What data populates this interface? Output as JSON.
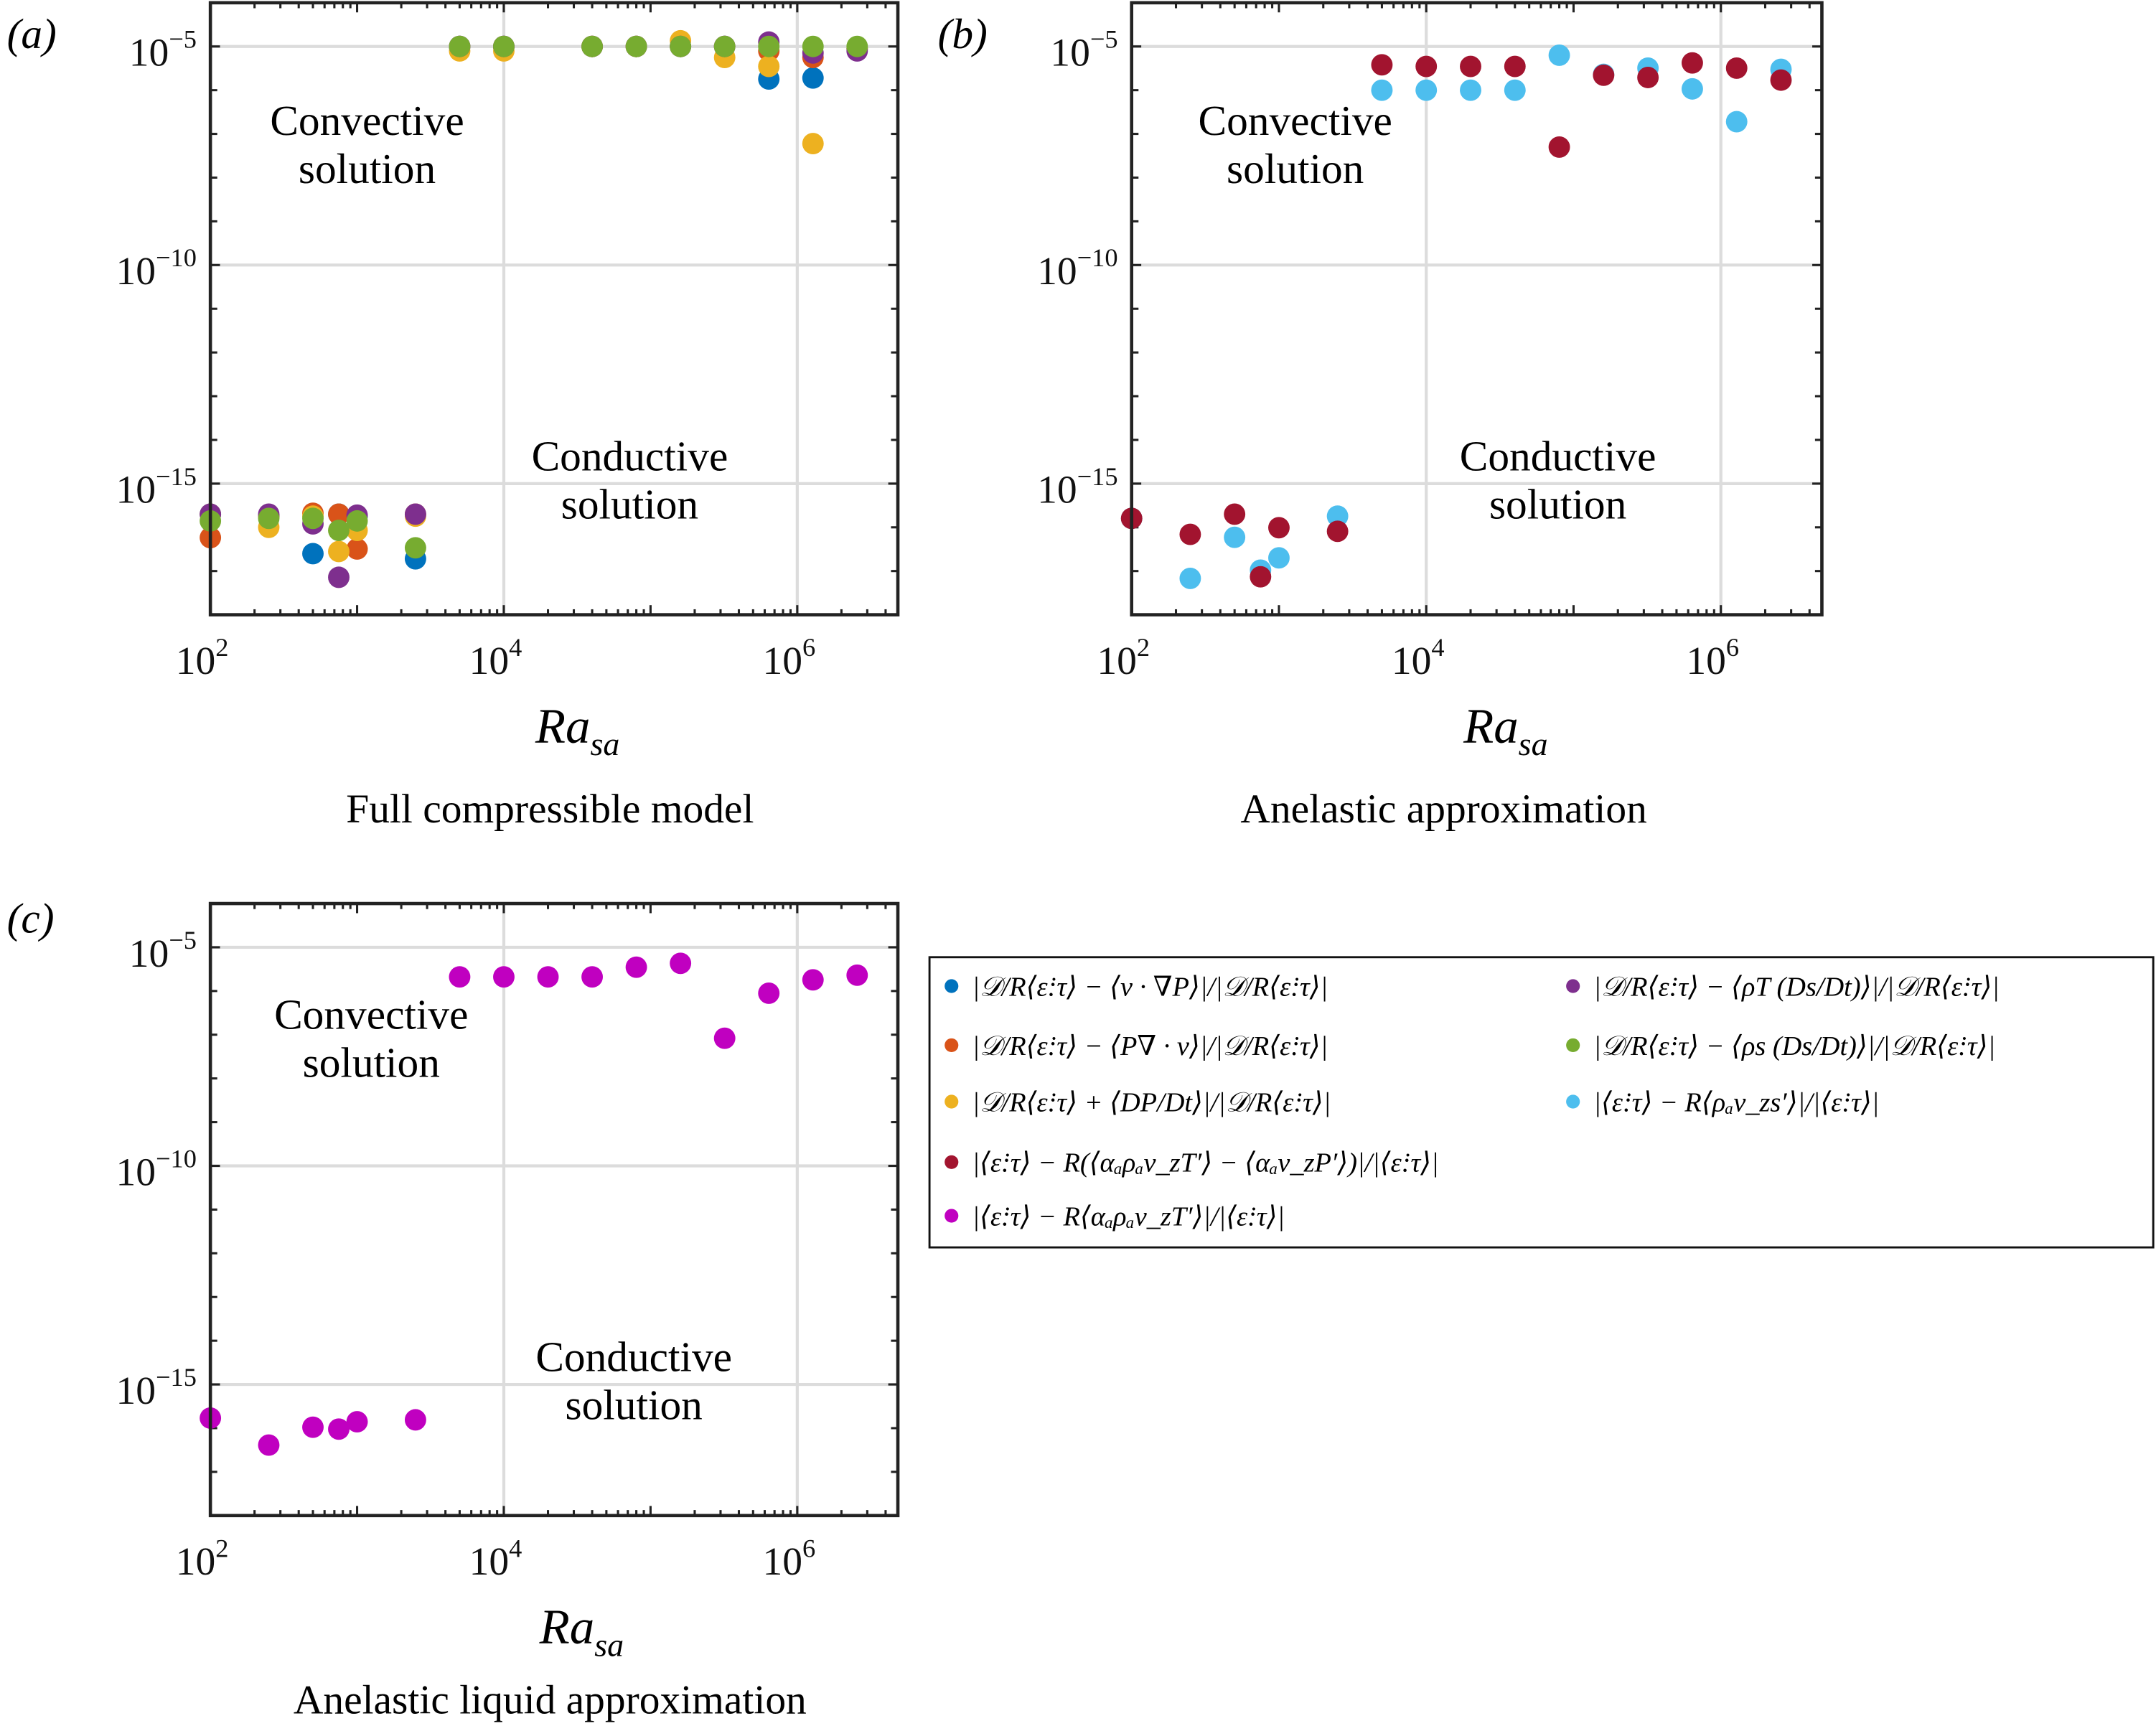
{
  "legend": {
    "entries": [
      {
        "label": "|𝒟/R⟨ε̇:τ⟩ − ⟨v · ∇P⟩|/|𝒟/R⟨ε̇:τ⟩|",
        "color": "#0072BD"
      },
      {
        "label": "|𝒟/R⟨ε̇:τ⟩ − ⟨P∇ · v⟩|/|𝒟/R⟨ε̇:τ⟩|",
        "color": "#D95319"
      },
      {
        "label": "|𝒟/R⟨ε̇:τ⟩ + ⟨DP/Dt⟩|/|𝒟/R⟨ε̇:τ⟩|",
        "color": "#EDB120"
      },
      {
        "label": "|⟨ε̇:τ⟩ − R(⟨αₐρₐv_zT′⟩ − ⟨αₐv_zP′⟩)|/|⟨ε̇:τ⟩|",
        "color": "#A2142F"
      },
      {
        "label": "|⟨ε̇:τ⟩ − R⟨αₐρₐv_zT′⟩|/|⟨ε̇:τ⟩|",
        "color": "#C000C0"
      },
      {
        "label": "|𝒟/R⟨ε̇:τ⟩ − ⟨ρT (Ds/Dt)⟩|/|𝒟/R⟨ε̇:τ⟩|",
        "color": "#7E2F8E"
      },
      {
        "label": "|𝒟/R⟨ε̇:τ⟩ − ⟨ρs (Ds/Dt)⟩|/|𝒟/R⟨ε̇:τ⟩|",
        "color": "#77AC30"
      },
      {
        "label": "|⟨ε̇:τ⟩ − R⟨ρₐv_zs′⟩|/|⟨ε̇:τ⟩|",
        "color": "#4DBEEE"
      }
    ]
  },
  "chart_data": [
    {
      "type": "scatter",
      "panel_label": "(a)",
      "caption": "Full compressible model",
      "xlabel": "Ra",
      "xlabel_subscript": "sa",
      "ylabel": "",
      "x_scale": "log",
      "y_scale": "log",
      "xlim": [
        100,
        4850000
      ],
      "ylim": [
        1e-18,
        0.0001
      ],
      "grid": true,
      "x_ticks": [
        {
          "base": "10",
          "exp": "2"
        },
        {
          "base": "10",
          "exp": "4"
        },
        {
          "base": "10",
          "exp": "6"
        }
      ],
      "y_ticks": [
        {
          "base": "10",
          "exp": "−5"
        },
        {
          "base": "10",
          "exp": "−10"
        },
        {
          "base": "10",
          "exp": "−15"
        }
      ],
      "annotations": [
        {
          "lines": [
            "Convective",
            "solution"
          ]
        },
        {
          "lines": [
            "Conductive",
            "solution"
          ]
        }
      ],
      "series": [
        {
          "name": "|𝒟/R⟨ε̇:τ⟩ − ⟨v · ∇P⟩|/|𝒟/R⟨ε̇:τ⟩|",
          "color": "#0072BD",
          "x": [
            100,
            250,
            500,
            750,
            1000,
            2500,
            5000,
            10000,
            40000,
            80000,
            160000,
            320000,
            640000,
            1280000,
            2560000
          ],
          "y": [
            2e-16,
            1.8e-16,
            2.5e-17,
            2e-16,
            1.8e-16,
            1.9e-17,
            1e-05,
            1e-05,
            1e-05,
            1e-05,
            1e-05,
            1e-05,
            1.8e-06,
            1.9e-06,
            8.9e-06
          ]
        },
        {
          "name": "|𝒟/R⟨ε̇:τ⟩ − ⟨P∇ · v⟩|/|𝒟/R⟨ε̇:τ⟩|",
          "color": "#D95319",
          "x": [
            100,
            250,
            500,
            750,
            1000,
            2500,
            5000,
            10000,
            40000,
            80000,
            160000,
            320000,
            640000,
            1280000,
            2560000
          ],
          "y": [
            5.8e-17,
            1.8e-16,
            2.1e-16,
            2e-16,
            3.2e-17,
            2e-16,
            1e-05,
            1e-05,
            1e-05,
            1e-05,
            1e-05,
            1e-05,
            7.9e-06,
            5.6e-06,
            8.9e-06
          ]
        },
        {
          "name": "|𝒟/R⟨ε̇:τ⟩ + ⟨DP/Dt⟩|/|𝒟/R⟨ε̇:τ⟩|",
          "color": "#EDB120",
          "x": [
            100,
            250,
            500,
            750,
            1000,
            2500,
            5000,
            10000,
            40000,
            80000,
            160000,
            320000,
            640000,
            1280000,
            2560000
          ],
          "y": [
            2e-16,
            1e-16,
            1.8e-16,
            2.8e-17,
            8.5e-17,
            1.8e-16,
            7.9e-06,
            7.9e-06,
            1e-05,
            1e-05,
            1.35e-05,
            5.6e-06,
            3.5e-06,
            6e-08,
            8.9e-06
          ]
        },
        {
          "name": "|𝒟/R⟨ε̇:τ⟩ − ⟨ρT (Ds/Dt)⟩|/|𝒟/R⟨ε̇:τ⟩|",
          "color": "#7E2F8E",
          "x": [
            100,
            250,
            500,
            750,
            1000,
            2500,
            5000,
            10000,
            40000,
            80000,
            160000,
            320000,
            640000,
            1280000,
            2560000
          ],
          "y": [
            2e-16,
            2e-16,
            1.2e-16,
            7.2e-18,
            1.9e-16,
            2e-16,
            1e-05,
            1e-05,
            1e-05,
            1e-05,
            1e-05,
            1e-05,
            1.26e-05,
            7.1e-06,
            7.9e-06
          ]
        },
        {
          "name": "|𝒟/R⟨ε̇:τ⟩ − ⟨ρs (Ds/Dt)⟩|/|𝒟/R⟨ε̇:τ⟩|",
          "color": "#77AC30",
          "x": [
            100,
            250,
            500,
            750,
            1000,
            2500,
            5000,
            10000,
            40000,
            80000,
            160000,
            320000,
            640000,
            1280000,
            2560000
          ],
          "y": [
            1.4e-16,
            1.6e-16,
            1.6e-16,
            8.5e-17,
            1.4e-16,
            3.4e-17,
            1e-05,
            1e-05,
            1e-05,
            1e-05,
            1e-05,
            1e-05,
            1e-05,
            1e-05,
            1e-05
          ]
        }
      ]
    },
    {
      "type": "scatter",
      "panel_label": "(b)",
      "caption": "Anelastic approximation",
      "xlabel": "Ra",
      "xlabel_subscript": "sa",
      "ylabel": "",
      "x_scale": "log",
      "y_scale": "log",
      "xlim": [
        100,
        4850000
      ],
      "ylim": [
        1e-18,
        0.0001
      ],
      "grid": true,
      "x_ticks": [
        {
          "base": "10",
          "exp": "2"
        },
        {
          "base": "10",
          "exp": "4"
        },
        {
          "base": "10",
          "exp": "6"
        }
      ],
      "y_ticks": [
        {
          "base": "10",
          "exp": "−5"
        },
        {
          "base": "10",
          "exp": "−10"
        },
        {
          "base": "10",
          "exp": "−15"
        }
      ],
      "annotations": [
        {
          "lines": [
            "Convective",
            "solution"
          ]
        },
        {
          "lines": [
            "Conductive",
            "solution"
          ]
        }
      ],
      "series": [
        {
          "name": "|⟨ε̇:τ⟩ − R⟨ρₐv_zs′⟩|/|⟨ε̇:τ⟩|",
          "color": "#4DBEEE",
          "x": [
            100,
            250,
            500,
            750,
            1000,
            2500,
            5000,
            10000,
            20000,
            40000,
            80000,
            160000,
            320000,
            640000,
            1280000,
            2560000
          ],
          "y": [
            1.6e-16,
            6.8e-18,
            5.9e-17,
            1.05e-17,
            2e-17,
            1.8e-16,
            1e-06,
            1e-06,
            1e-06,
            1e-06,
            6.3e-06,
            2.3e-06,
            3.2e-06,
            1.07e-06,
            1.9e-07,
            3e-06
          ]
        },
        {
          "name": "|⟨ε̇:τ⟩ − R(⟨αₐρₐv_zT′⟩ − ⟨αₐv_zP′⟩)|/|⟨ε̇:τ⟩|",
          "color": "#A2142F",
          "x": [
            100,
            250,
            500,
            750,
            1000,
            2500,
            5000,
            10000,
            20000,
            40000,
            80000,
            160000,
            320000,
            640000,
            1280000,
            2560000
          ],
          "y": [
            1.6e-16,
            6.9e-17,
            2e-16,
            7.4e-18,
            9.8e-17,
            8.1e-17,
            3.8e-06,
            3.5e-06,
            3.5e-06,
            3.5e-06,
            5e-08,
            2.2e-06,
            1.95e-06,
            4.2e-06,
            3.2e-06,
            1.7e-06
          ]
        }
      ]
    },
    {
      "type": "scatter",
      "panel_label": "(c)",
      "caption": "Anelastic liquid approximation",
      "xlabel": "Ra",
      "xlabel_subscript": "sa",
      "ylabel": "",
      "x_scale": "log",
      "y_scale": "log",
      "xlim": [
        100,
        4850000
      ],
      "ylim": [
        1e-18,
        0.0001
      ],
      "grid": true,
      "x_ticks": [
        {
          "base": "10",
          "exp": "2"
        },
        {
          "base": "10",
          "exp": "4"
        },
        {
          "base": "10",
          "exp": "6"
        }
      ],
      "y_ticks": [
        {
          "base": "10",
          "exp": "−5"
        },
        {
          "base": "10",
          "exp": "−10"
        },
        {
          "base": "10",
          "exp": "−15"
        }
      ],
      "annotations": [
        {
          "lines": [
            "Convective",
            "solution"
          ]
        },
        {
          "lines": [
            "Conductive",
            "solution"
          ]
        }
      ],
      "series": [
        {
          "name": "|⟨ε̇:τ⟩ − R⟨αₐρₐv_zT′⟩|/|⟨ε̇:τ⟩|",
          "color": "#C000C0",
          "x": [
            100,
            250,
            500,
            750,
            1000,
            2500,
            5000,
            10000,
            20000,
            40000,
            80000,
            160000,
            320000,
            640000,
            1280000,
            2560000
          ],
          "y": [
            1.7e-16,
            4.1e-17,
            1.05e-16,
            9.5e-17,
            1.4e-16,
            1.55e-16,
            2.1e-06,
            2.1e-06,
            2.1e-06,
            2.1e-06,
            3.5e-06,
            4.3e-06,
            8.3e-08,
            8.9e-07,
            1.8e-06,
            2.3e-06
          ]
        }
      ]
    }
  ]
}
